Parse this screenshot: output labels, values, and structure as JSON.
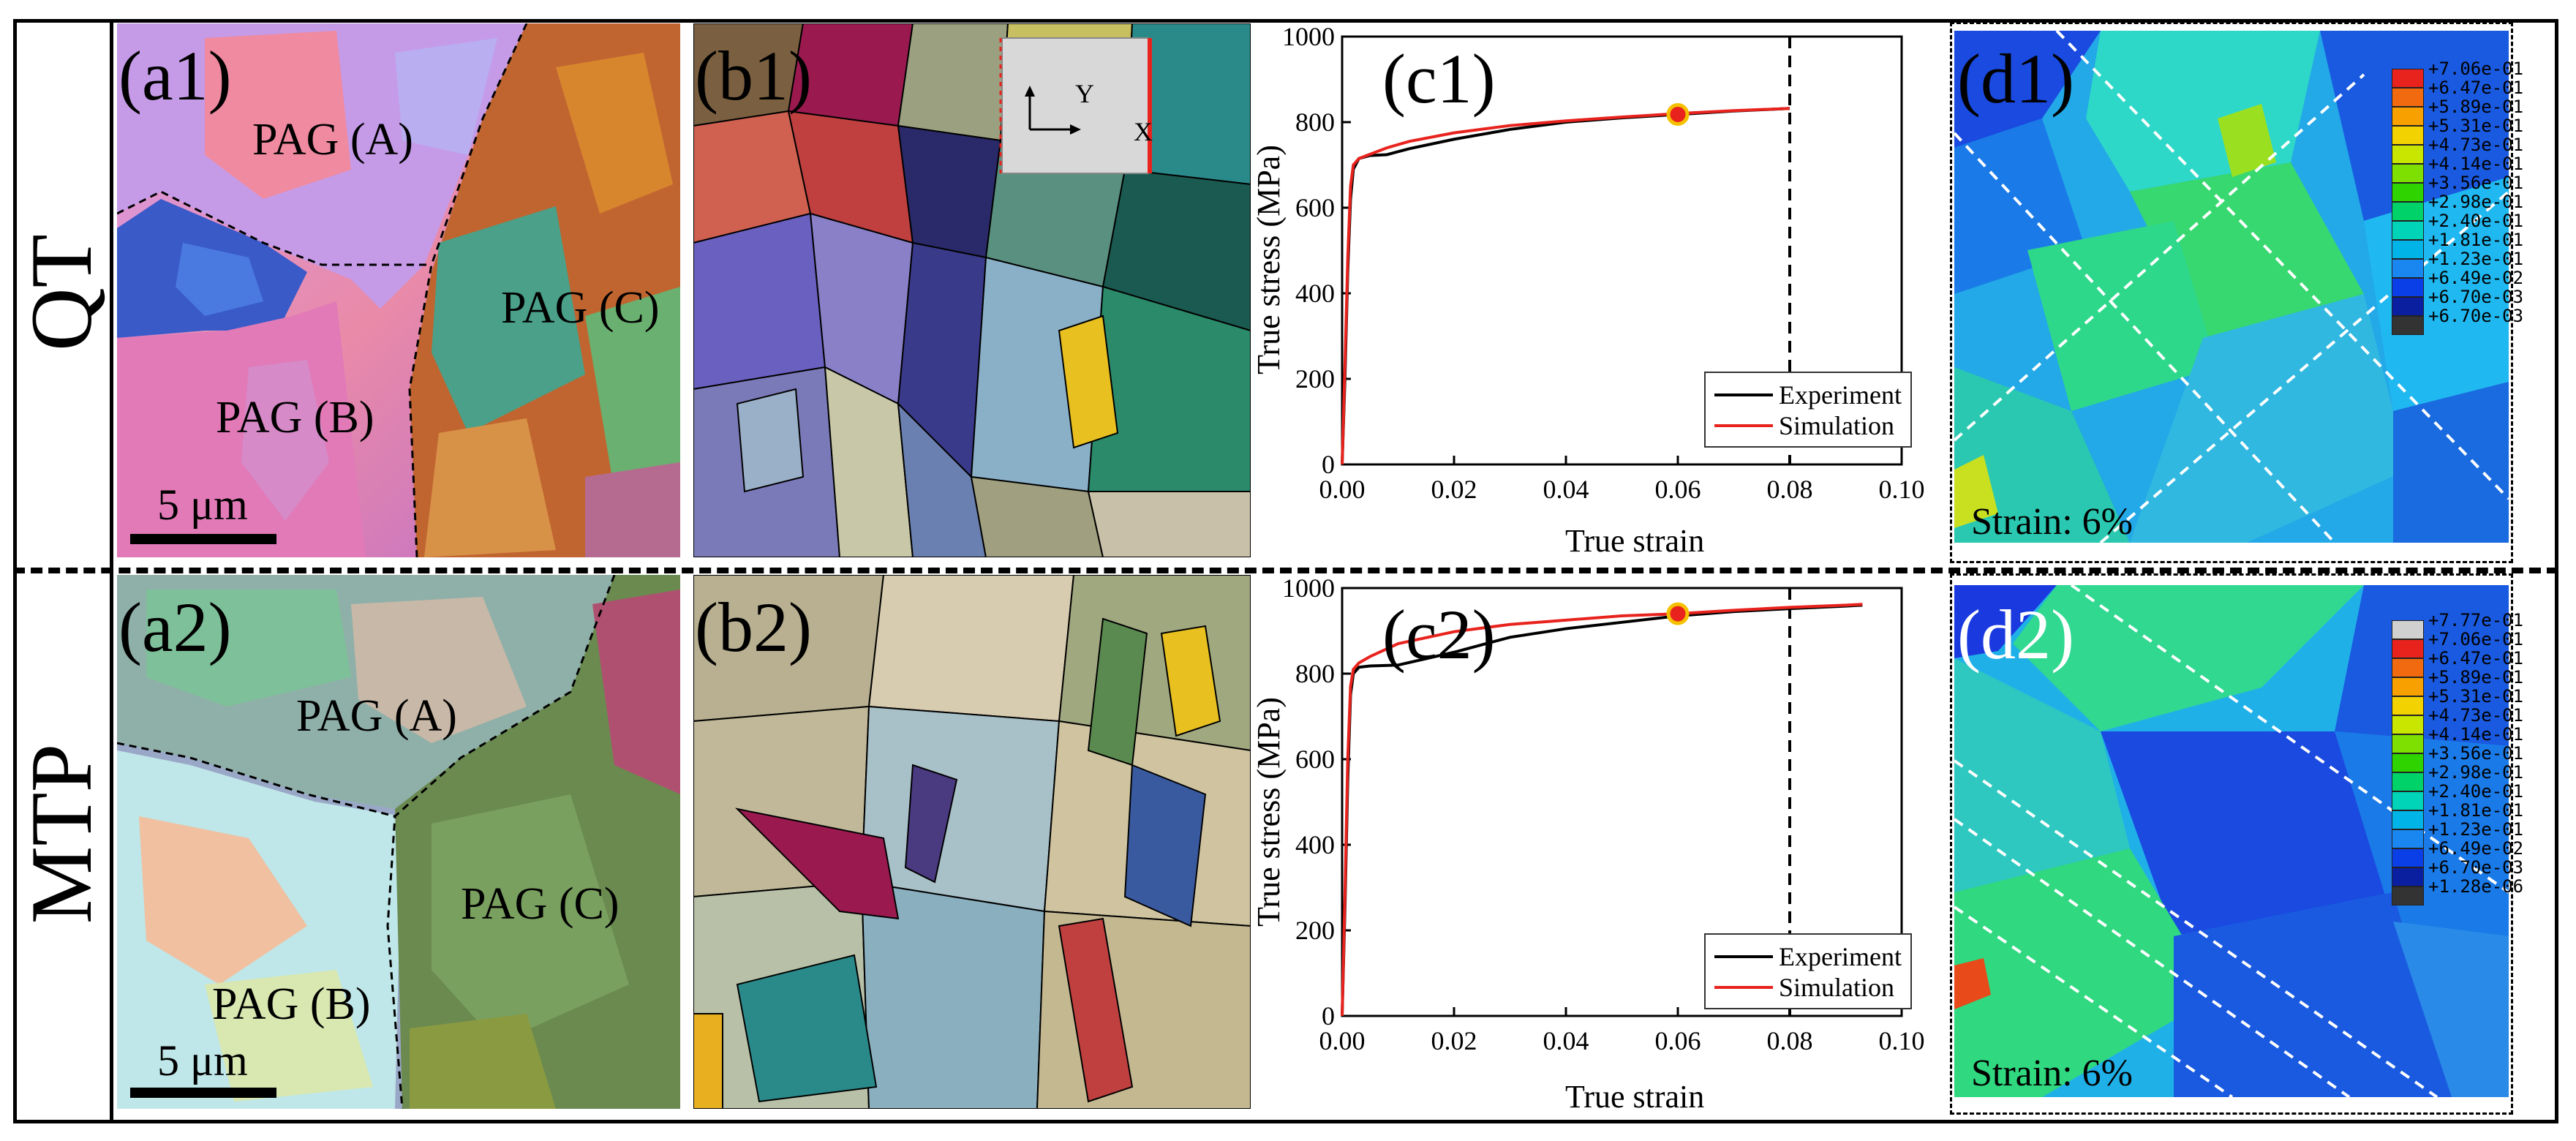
{
  "rows": [
    {
      "label": "QT"
    },
    {
      "label": "MTP"
    }
  ],
  "panels": {
    "a1": {
      "label": "(a1)",
      "pag_a": "PAG (A)",
      "pag_b": "PAG (B)",
      "pag_c": "PAG (C)",
      "scale": "5 μm"
    },
    "a2": {
      "label": "(a2)",
      "pag_a": "PAG (A)",
      "pag_b": "PAG (B)",
      "pag_c": "PAG (C)",
      "scale": "5 μm"
    },
    "b1": {
      "label": "(b1)",
      "axis_y": "Y",
      "axis_x": "X"
    },
    "b2": {
      "label": "(b2)"
    },
    "d1": {
      "label": "(d1)",
      "strain": "Strain: 6%"
    },
    "d2": {
      "label": "(d2)",
      "strain": "Strain: 6%"
    }
  },
  "colors": {
    "experiment": "#000000",
    "simulation": "#e8231e",
    "marker": "#e8231e",
    "marker_edge": "#f5c000"
  },
  "chart_data": [
    {
      "type": "line",
      "panel_label": "(c1)",
      "xlabel": "True strain",
      "ylabel": "True stress (MPa)",
      "xlim": [
        0,
        0.1
      ],
      "ylim": [
        0,
        1000
      ],
      "xticks": [
        "0.00",
        "0.02",
        "0.04",
        "0.06",
        "0.08",
        "0.10"
      ],
      "yticks": [
        "0",
        "200",
        "400",
        "600",
        "800",
        "1000"
      ],
      "vline_x": 0.08,
      "marker": {
        "x": 0.06,
        "y": 818
      },
      "legend": [
        "Experiment",
        "Simulation"
      ],
      "series": [
        {
          "name": "Experiment",
          "x": [
            0,
            0.0005,
            0.001,
            0.0015,
            0.002,
            0.003,
            0.005,
            0.008,
            0.012,
            0.02,
            0.03,
            0.04,
            0.05,
            0.06,
            0.07,
            0.08
          ],
          "y": [
            0,
            200,
            450,
            620,
            690,
            715,
            722,
            724,
            738,
            760,
            783,
            800,
            810,
            818,
            826,
            832
          ]
        },
        {
          "name": "Simulation",
          "x": [
            0,
            0.0005,
            0.001,
            0.0015,
            0.002,
            0.003,
            0.005,
            0.008,
            0.012,
            0.02,
            0.03,
            0.04,
            0.05,
            0.06,
            0.07,
            0.08
          ],
          "y": [
            0,
            230,
            480,
            650,
            700,
            715,
            725,
            740,
            755,
            775,
            792,
            803,
            812,
            820,
            827,
            832
          ]
        }
      ]
    },
    {
      "type": "line",
      "panel_label": "(c2)",
      "xlabel": "True strain",
      "ylabel": "True stress (MPa)",
      "xlim": [
        0,
        0.1
      ],
      "ylim": [
        0,
        1000
      ],
      "xticks": [
        "0.00",
        "0.02",
        "0.04",
        "0.06",
        "0.08",
        "0.10"
      ],
      "yticks": [
        "0",
        "200",
        "400",
        "600",
        "800",
        "1000"
      ],
      "vline_x": 0.08,
      "marker": {
        "x": 0.06,
        "y": 940
      },
      "legend": [
        "Experiment",
        "Simulation"
      ],
      "series": [
        {
          "name": "Experiment",
          "x": [
            0,
            0.0005,
            0.001,
            0.0015,
            0.002,
            0.003,
            0.005,
            0.01,
            0.02,
            0.03,
            0.04,
            0.05,
            0.06,
            0.07,
            0.08,
            0.09,
            0.093
          ],
          "y": [
            0,
            250,
            550,
            750,
            800,
            815,
            818,
            820,
            850,
            885,
            905,
            920,
            935,
            945,
            952,
            958,
            960
          ]
        },
        {
          "name": "Simulation",
          "x": [
            0,
            0.0005,
            0.001,
            0.0015,
            0.002,
            0.003,
            0.005,
            0.01,
            0.02,
            0.03,
            0.04,
            0.05,
            0.06,
            0.07,
            0.08,
            0.09,
            0.093
          ],
          "y": [
            0,
            280,
            600,
            770,
            810,
            825,
            840,
            870,
            898,
            915,
            925,
            935,
            940,
            948,
            955,
            960,
            962
          ]
        }
      ]
    }
  ],
  "colorbars": [
    {
      "labels": [
        "+7.06e-01",
        "+6.47e-01",
        "+5.89e-01",
        "+5.31e-01",
        "+4.73e-01",
        "+4.14e-01",
        "+3.56e-01",
        "+2.98e-01",
        "+2.40e-01",
        "+1.81e-01",
        "+1.23e-01",
        "+6.49e-02",
        "+6.70e-03",
        "+6.70e-03"
      ],
      "colors": [
        "#e8231e",
        "#f26a10",
        "#f7a000",
        "#f2d200",
        "#c8e600",
        "#7ee000",
        "#2fd400",
        "#00d26a",
        "#00d4b8",
        "#00b4e8",
        "#1a86f0",
        "#0a3ee6",
        "#0a1ea0",
        "#333333"
      ]
    },
    {
      "labels": [
        "+7.77e-01",
        "+7.06e-01",
        "+6.47e-01",
        "+5.89e-01",
        "+5.31e-01",
        "+4.73e-01",
        "+4.14e-01",
        "+3.56e-01",
        "+2.98e-01",
        "+2.40e-01",
        "+1.81e-01",
        "+1.23e-01",
        "+6.49e-02",
        "+6.70e-03",
        "+1.28e-06"
      ],
      "colors": [
        "#d0d0d0",
        "#e8231e",
        "#f26a10",
        "#f7a000",
        "#f2d200",
        "#c8e600",
        "#7ee000",
        "#2fd400",
        "#00d26a",
        "#00d4b8",
        "#00b4e8",
        "#1a86f0",
        "#0a3ee6",
        "#0a1ea0",
        "#333333"
      ]
    }
  ]
}
